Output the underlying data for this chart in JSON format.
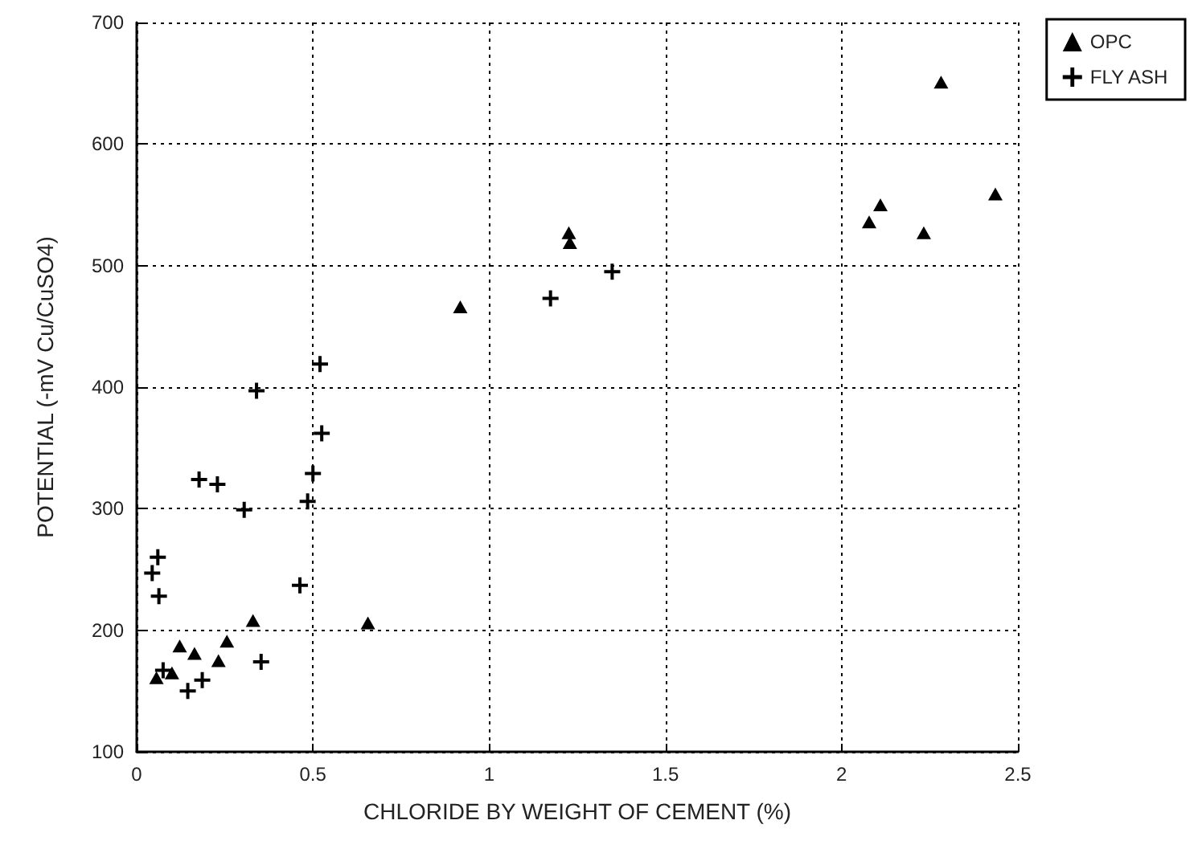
{
  "chart_data": {
    "type": "scatter",
    "xlabel": "CHLORIDE BY WEIGHT OF CEMENT (%)",
    "ylabel": "POTENTIAL (-mV Cu/CuSO4)",
    "xlim": [
      0,
      2.5
    ],
    "xticks": [
      0,
      0.5,
      1,
      1.5,
      2,
      2.5
    ],
    "ylim": [
      100,
      700
    ],
    "yticks": [
      100,
      200,
      300,
      400,
      500,
      600,
      700
    ],
    "grid": true,
    "legend": "top right",
    "series": [
      {
        "name": "OPC",
        "color": "#000000",
        "marker": "triangle",
        "x": [
          0.33,
          0.656,
          0.122,
          0.256,
          0.164,
          0.232,
          0.056,
          0.1,
          0.918,
          1.226,
          1.229,
          2.282,
          2.436,
          2.11,
          2.078,
          2.233
        ],
        "values": [
          208,
          206,
          187,
          191,
          181,
          175,
          161,
          165,
          466,
          527,
          519,
          651,
          559,
          550,
          536,
          527
        ]
      },
      {
        "name": "FLY ASH",
        "color": "#000000",
        "marker": "cross",
        "x": [
          0.52,
          0.34,
          0.525,
          0.5,
          0.177,
          0.229,
          0.485,
          0.305,
          0.06,
          0.044,
          0.063,
          0.463,
          0.353,
          0.186,
          0.145,
          0.075,
          1.174,
          1.349
        ],
        "values": [
          419,
          397,
          362,
          329,
          324,
          320,
          306,
          299,
          260,
          247,
          228,
          237,
          174,
          159,
          150,
          167,
          473,
          495
        ]
      }
    ]
  }
}
